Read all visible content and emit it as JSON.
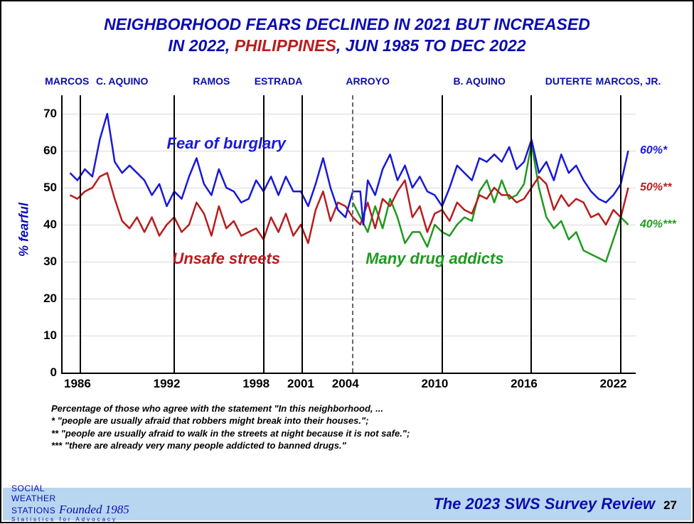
{
  "title": {
    "l1_a": "NEIGHBORHOOD FEARS DECLINED IN 2021 BUT INCREASED",
    "l2_a": "IN 2022, ",
    "l2_b": "PHILIPPINES",
    "l2_c": ", JUN 1985 TO DEC 2022"
  },
  "chart": {
    "type": "line",
    "xlim": [
      1985,
      2023.5
    ],
    "ylim": [
      0,
      75
    ],
    "ytick_step": 10,
    "ylabel": "% fearful",
    "xtick_years": [
      1986,
      1992,
      1998,
      2001,
      2004,
      2010,
      2016,
      2022
    ],
    "presidents": [
      {
        "label": "MARCOS",
        "x": 1985.3
      },
      {
        "label": "C. AQUINO",
        "x": 1989
      },
      {
        "label": "RAMOS",
        "x": 1995
      },
      {
        "label": "ESTRADA",
        "x": 1999.5
      },
      {
        "label": "ARROYO",
        "x": 2005.5
      },
      {
        "label": "B. AQUINO",
        "x": 2013
      },
      {
        "label": "DUTERTE",
        "x": 2019
      },
      {
        "label": "MARCOS, JR.",
        "x": 2023
      }
    ],
    "term_lines": [
      {
        "x": 1986.2,
        "dashed": false
      },
      {
        "x": 1992.5,
        "dashed": false
      },
      {
        "x": 1998.5,
        "dashed": false
      },
      {
        "x": 2001.1,
        "dashed": false
      },
      {
        "x": 2004.5,
        "dashed": true
      },
      {
        "x": 2010.5,
        "dashed": false
      },
      {
        "x": 2016.5,
        "dashed": false
      },
      {
        "x": 2022.5,
        "dashed": false
      }
    ],
    "colors": {
      "burglary": "#1919d8",
      "streets": "#b81d1d",
      "drugs": "#1f9a1f",
      "grid": "#e0e0e0"
    },
    "line_width": 2.5,
    "series": {
      "burglary": {
        "label": "Fear of burglary",
        "label_pos": {
          "x": 1996,
          "y": 62
        },
        "end_label": "60%*",
        "end_y": 60,
        "points": [
          [
            1985.5,
            54
          ],
          [
            1986.0,
            52
          ],
          [
            1986.5,
            55
          ],
          [
            1987.0,
            53
          ],
          [
            1987.5,
            63
          ],
          [
            1988.0,
            70
          ],
          [
            1988.5,
            57
          ],
          [
            1989.0,
            54
          ],
          [
            1989.5,
            56
          ],
          [
            1990.0,
            54
          ],
          [
            1990.5,
            52
          ],
          [
            1991.0,
            48
          ],
          [
            1991.5,
            51
          ],
          [
            1992.0,
            45
          ],
          [
            1992.5,
            49
          ],
          [
            1993.0,
            47
          ],
          [
            1993.5,
            53
          ],
          [
            1994.0,
            58
          ],
          [
            1994.5,
            51
          ],
          [
            1995.0,
            48
          ],
          [
            1995.5,
            55
          ],
          [
            1996.0,
            50
          ],
          [
            1996.5,
            49
          ],
          [
            1997.0,
            46
          ],
          [
            1997.5,
            47
          ],
          [
            1998.0,
            52
          ],
          [
            1998.5,
            49
          ],
          [
            1999.0,
            53
          ],
          [
            1999.5,
            48
          ],
          [
            2000.0,
            53
          ],
          [
            2000.5,
            49
          ],
          [
            2001.0,
            49
          ],
          [
            2001.5,
            45
          ],
          [
            2002.0,
            51
          ],
          [
            2002.5,
            58
          ],
          [
            2003.0,
            50
          ],
          [
            2003.5,
            44
          ],
          [
            2004.0,
            42
          ],
          [
            2004.5,
            49
          ],
          [
            2005.0,
            49
          ],
          [
            2005.2,
            40
          ],
          [
            2005.5,
            52
          ],
          [
            2006.0,
            48
          ],
          [
            2006.5,
            55
          ],
          [
            2007.0,
            59
          ],
          [
            2007.5,
            52
          ],
          [
            2008.0,
            56
          ],
          [
            2008.5,
            50
          ],
          [
            2009.0,
            53
          ],
          [
            2009.5,
            49
          ],
          [
            2010.0,
            48
          ],
          [
            2010.5,
            45
          ],
          [
            2011.0,
            50
          ],
          [
            2011.5,
            56
          ],
          [
            2012.0,
            54
          ],
          [
            2012.5,
            52
          ],
          [
            2013.0,
            58
          ],
          [
            2013.5,
            57
          ],
          [
            2014.0,
            59
          ],
          [
            2014.5,
            57
          ],
          [
            2015.0,
            61
          ],
          [
            2015.5,
            55
          ],
          [
            2016.0,
            57
          ],
          [
            2016.5,
            63
          ],
          [
            2017.0,
            54
          ],
          [
            2017.5,
            57
          ],
          [
            2018.0,
            52
          ],
          [
            2018.5,
            59
          ],
          [
            2019.0,
            54
          ],
          [
            2019.5,
            56
          ],
          [
            2020.0,
            52
          ],
          [
            2020.5,
            49
          ],
          [
            2021.0,
            47
          ],
          [
            2021.5,
            46
          ],
          [
            2022.0,
            48
          ],
          [
            2022.5,
            51
          ],
          [
            2023.0,
            60
          ]
        ]
      },
      "streets": {
        "label": "Unsafe streets",
        "label_pos": {
          "x": 1996,
          "y": 31
        },
        "end_label": "50%**",
        "end_y": 50,
        "points": [
          [
            1985.5,
            48
          ],
          [
            1986.0,
            47
          ],
          [
            1986.5,
            49
          ],
          [
            1987.0,
            50
          ],
          [
            1987.5,
            53
          ],
          [
            1988.0,
            54
          ],
          [
            1988.5,
            47
          ],
          [
            1989.0,
            41
          ],
          [
            1989.5,
            39
          ],
          [
            1990.0,
            42
          ],
          [
            1990.5,
            38
          ],
          [
            1991.0,
            42
          ],
          [
            1991.5,
            37
          ],
          [
            1992.0,
            40
          ],
          [
            1992.5,
            42
          ],
          [
            1993.0,
            38
          ],
          [
            1993.5,
            40
          ],
          [
            1994.0,
            46
          ],
          [
            1994.5,
            43
          ],
          [
            1995.0,
            37
          ],
          [
            1995.5,
            45
          ],
          [
            1996.0,
            39
          ],
          [
            1996.5,
            41
          ],
          [
            1997.0,
            37
          ],
          [
            1997.5,
            38
          ],
          [
            1998.0,
            39
          ],
          [
            1998.5,
            36
          ],
          [
            1999.0,
            42
          ],
          [
            1999.5,
            38
          ],
          [
            2000.0,
            43
          ],
          [
            2000.5,
            37
          ],
          [
            2001.0,
            40
          ],
          [
            2001.5,
            35
          ],
          [
            2002.0,
            44
          ],
          [
            2002.5,
            49
          ],
          [
            2003.0,
            41
          ],
          [
            2003.5,
            46
          ],
          [
            2004.0,
            45
          ],
          [
            2004.5,
            42
          ],
          [
            2005.0,
            40
          ],
          [
            2005.5,
            46
          ],
          [
            2006.0,
            39
          ],
          [
            2006.5,
            47
          ],
          [
            2007.0,
            45
          ],
          [
            2007.5,
            49
          ],
          [
            2008.0,
            52
          ],
          [
            2008.5,
            42
          ],
          [
            2009.0,
            45
          ],
          [
            2009.5,
            38
          ],
          [
            2010.0,
            43
          ],
          [
            2010.5,
            44
          ],
          [
            2011.0,
            41
          ],
          [
            2011.5,
            46
          ],
          [
            2012.0,
            44
          ],
          [
            2012.5,
            43
          ],
          [
            2013.0,
            48
          ],
          [
            2013.5,
            47
          ],
          [
            2014.0,
            50
          ],
          [
            2014.5,
            48
          ],
          [
            2015.0,
            48
          ],
          [
            2015.5,
            46
          ],
          [
            2016.0,
            47
          ],
          [
            2016.5,
            50
          ],
          [
            2017.0,
            53
          ],
          [
            2017.5,
            51
          ],
          [
            2018.0,
            44
          ],
          [
            2018.5,
            48
          ],
          [
            2019.0,
            45
          ],
          [
            2019.5,
            47
          ],
          [
            2020.0,
            46
          ],
          [
            2020.5,
            42
          ],
          [
            2021.0,
            43
          ],
          [
            2021.5,
            40
          ],
          [
            2022.0,
            44
          ],
          [
            2022.5,
            42
          ],
          [
            2023.0,
            50
          ]
        ]
      },
      "drugs": {
        "label": "Many drug addicts",
        "label_pos": {
          "x": 2010,
          "y": 31
        },
        "end_label": "40%***",
        "end_y": 40,
        "points": [
          [
            2004.5,
            46
          ],
          [
            2005.0,
            42
          ],
          [
            2005.5,
            38
          ],
          [
            2006.0,
            45
          ],
          [
            2006.5,
            39
          ],
          [
            2007.0,
            47
          ],
          [
            2007.5,
            42
          ],
          [
            2008.0,
            35
          ],
          [
            2008.5,
            38
          ],
          [
            2009.0,
            38
          ],
          [
            2009.5,
            34
          ],
          [
            2010.0,
            40
          ],
          [
            2010.5,
            38
          ],
          [
            2011.0,
            37
          ],
          [
            2011.5,
            40
          ],
          [
            2012.0,
            42
          ],
          [
            2012.5,
            41
          ],
          [
            2013.0,
            49
          ],
          [
            2013.5,
            52
          ],
          [
            2014.0,
            46
          ],
          [
            2014.5,
            52
          ],
          [
            2015.0,
            47
          ],
          [
            2015.5,
            48
          ],
          [
            2016.0,
            51
          ],
          [
            2016.5,
            62
          ],
          [
            2017.0,
            50
          ],
          [
            2017.5,
            42
          ],
          [
            2018.0,
            39
          ],
          [
            2018.5,
            41
          ],
          [
            2019.0,
            36
          ],
          [
            2019.5,
            38
          ],
          [
            2020.0,
            33
          ],
          [
            2020.5,
            32
          ],
          [
            2021.0,
            31
          ],
          [
            2021.5,
            30
          ],
          [
            2022.0,
            36
          ],
          [
            2022.5,
            42
          ],
          [
            2023.0,
            40
          ]
        ]
      }
    }
  },
  "footnotes": {
    "l1": "Percentage of  those who agree with the statement \"In this neighborhood, ...",
    "l2": "* \"people are usually afraid that robbers might break into their houses.\";",
    "l3": "** \"people are usually afraid to walk in the streets at night because it is not safe.\";",
    "l4": "*** \"there are already very many people addicted to banned drugs.\""
  },
  "footer": {
    "org1": "SOCIAL",
    "org2": "WEATHER",
    "org3": "STATIONS",
    "founded": "Founded 1985",
    "tagline": "Statistics for Advocacy",
    "review": "The 2023 SWS Survey Review",
    "page": "27"
  }
}
